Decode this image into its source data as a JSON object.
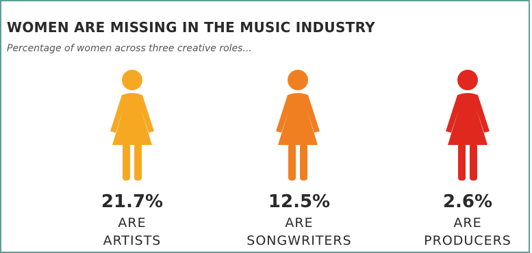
{
  "header": {
    "title": "WOMEN ARE MISSING IN THE MUSIC INDUSTRY",
    "subtitle": "Percentage of women across three creative roles..."
  },
  "chart_data": {
    "type": "pictogram",
    "title": "WOMEN ARE MISSING IN THE MUSIC INDUSTRY",
    "subtitle": "Percentage of women across three creative roles...",
    "items": [
      {
        "value": 21.7,
        "value_label": "21.7%",
        "prefix": "ARE",
        "role": "ARTISTS",
        "color": "#f7a823",
        "icon": "woman-icon"
      },
      {
        "value": 12.5,
        "value_label": "12.5%",
        "prefix": "ARE",
        "role": "SONGWRITERS",
        "color": "#f07f21",
        "icon": "woman-icon"
      },
      {
        "value": 2.6,
        "value_label": "2.6%",
        "prefix": "ARE",
        "role": "PRODUCERS",
        "color": "#e0281e",
        "icon": "woman-icon"
      }
    ]
  },
  "colors": {
    "frame": "#5e9e96",
    "text": "#2a2a2a"
  }
}
